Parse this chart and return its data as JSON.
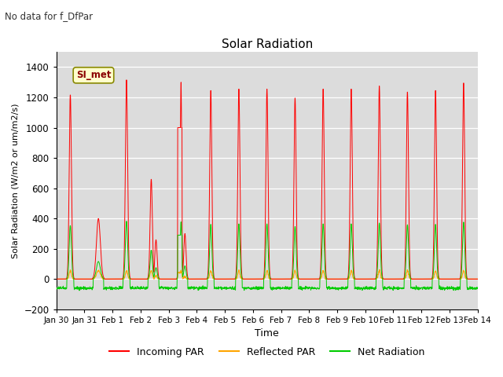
{
  "title": "Solar Radiation",
  "subtitle": "No data for f_DfPar",
  "ylabel": "Solar Radiation (W/m2 or um/m2/s)",
  "xlabel": "Time",
  "ylim": [
    -200,
    1500
  ],
  "yticks": [
    -200,
    0,
    200,
    400,
    600,
    800,
    1000,
    1200,
    1400
  ],
  "xtick_labels": [
    "Jan 30",
    "Jan 31",
    "Feb 1",
    "Feb 2",
    "Feb 3",
    "Feb 4",
    "Feb 5",
    "Feb 6",
    "Feb 7",
    "Feb 8",
    "Feb 9",
    "Feb 10",
    "Feb 11",
    "Feb 12",
    "Feb 13",
    "Feb 14"
  ],
  "legend_label": "SI_met",
  "bg_color": "#dcdcdc",
  "incoming_color": "#ff0000",
  "reflected_color": "#ffa500",
  "net_color": "#00cc00",
  "legend_entries": [
    "Incoming PAR",
    "Reflected PAR",
    "Net Radiation"
  ]
}
